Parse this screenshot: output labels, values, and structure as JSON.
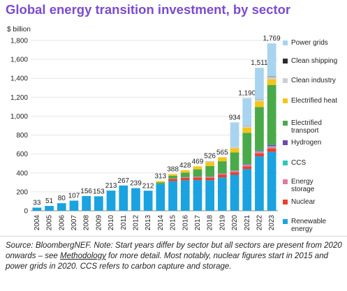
{
  "chart_data": {
    "type": "bar",
    "title": "Global energy transition investment, by sector",
    "ylabel": "$ billion",
    "xlabel": "",
    "ylim": [
      0,
      1800
    ],
    "yticks": [
      "0",
      "200",
      "400",
      "600",
      "800",
      "1,000",
      "1,200",
      "1,400",
      "1,600",
      "1,800"
    ],
    "ytick_values": [
      0,
      200,
      400,
      600,
      800,
      1000,
      1200,
      1400,
      1600,
      1800
    ],
    "categories": [
      "2004",
      "2005",
      "2006",
      "2007",
      "2008",
      "2009",
      "2010",
      "2011",
      "2012",
      "2013",
      "2014",
      "2015",
      "2016",
      "2017",
      "2018",
      "2019",
      "2020",
      "2021",
      "2022",
      "2023"
    ],
    "totals": [
      33,
      51,
      80,
      107,
      156,
      153,
      213,
      267,
      239,
      212,
      313,
      388,
      428,
      469,
      526,
      565,
      934,
      1190,
      1511,
      1769
    ],
    "total_labels": [
      "33",
      "51",
      "80",
      "107",
      "156",
      "153",
      "213",
      "267",
      "239",
      "212",
      "313",
      "388",
      "428",
      "469",
      "526",
      "565",
      "934",
      "1,190",
      "1,511",
      "1,769"
    ],
    "series": [
      {
        "name": "Renewable energy",
        "color": "#1aa3e0",
        "values": [
          33,
          51,
          80,
          107,
          156,
          153,
          213,
          267,
          239,
          212,
          282,
          313,
          322,
          324,
          322,
          352,
          380,
          440,
          575,
          622
        ]
      },
      {
        "name": "Nuclear",
        "color": "#e8412b",
        "values": [
          0,
          0,
          0,
          0,
          0,
          0,
          0,
          0,
          0,
          0,
          0,
          24,
          25,
          26,
          27,
          28,
          28,
          30,
          32,
          36
        ]
      },
      {
        "name": "Energy storage",
        "color": "#e07aa8",
        "values": [
          0,
          0,
          0,
          0,
          0,
          0,
          0,
          0,
          0,
          0,
          0,
          4,
          6,
          8,
          9,
          11,
          13,
          16,
          18,
          20
        ]
      },
      {
        "name": "CCS",
        "color": "#2ec8b8",
        "values": [
          0,
          0,
          0,
          0,
          0,
          0,
          0,
          0,
          0,
          0,
          0,
          0,
          1,
          1,
          2,
          2,
          3,
          4,
          6,
          8
        ]
      },
      {
        "name": "Hydrogen",
        "color": "#7048b0",
        "values": [
          0,
          0,
          0,
          0,
          0,
          0,
          0,
          0,
          0,
          0,
          0,
          0,
          1,
          1,
          1,
          2,
          2,
          4,
          6,
          10
        ]
      },
      {
        "name": "Electrified transport",
        "color": "#4aaa4a",
        "values": [
          0,
          0,
          0,
          0,
          0,
          0,
          0,
          0,
          0,
          0,
          18,
          30,
          48,
          78,
          112,
          128,
          190,
          330,
          460,
          634
        ]
      },
      {
        "name": "Electrified heat",
        "color": "#f5c518",
        "values": [
          0,
          0,
          0,
          0,
          0,
          0,
          0,
          0,
          0,
          0,
          13,
          17,
          25,
          31,
          40,
          42,
          45,
          55,
          60,
          60
        ]
      },
      {
        "name": "Clean industry",
        "color": "#cfcfcf",
        "values": [
          0,
          0,
          0,
          0,
          0,
          0,
          0,
          0,
          0,
          0,
          0,
          0,
          0,
          0,
          13,
          0,
          13,
          20,
          22,
          25
        ]
      },
      {
        "name": "Clean shipping",
        "color": "#2b2b2b",
        "values": [
          0,
          0,
          0,
          0,
          0,
          0,
          0,
          0,
          0,
          0,
          0,
          0,
          0,
          0,
          0,
          0,
          0,
          1,
          2,
          4
        ]
      },
      {
        "name": "Power grids",
        "color": "#a9d4f0",
        "values": [
          0,
          0,
          0,
          0,
          0,
          0,
          0,
          0,
          0,
          0,
          0,
          0,
          0,
          0,
          0,
          0,
          260,
          290,
          330,
          350
        ]
      }
    ],
    "legend_position": "right",
    "legend_labels": [
      "Power grids",
      "Clean shipping",
      "Clean industry",
      "Electrified heat",
      "Electrified transport",
      "Hydrogen",
      "CCS",
      "Energy storage",
      "Nuclear",
      "Renewable energy"
    ],
    "legend_colors": [
      "#a9d4f0",
      "#2b2b2b",
      "#cfcfcf",
      "#f5c518",
      "#4aaa4a",
      "#7048b0",
      "#2ec8b8",
      "#e07aa8",
      "#e8412b",
      "#1aa3e0"
    ]
  },
  "source": {
    "before_link": "Source: BloombergNEF. Note: Start years differ by sector but all sectors are present from 2020 onwards – see ",
    "link": "Methodology",
    "after_link": " for more detail. Most notably, nuclear figures start in 2015 and power grids in 2020. CCS refers to carbon capture and storage."
  },
  "accent_color": "#7a4bd0"
}
